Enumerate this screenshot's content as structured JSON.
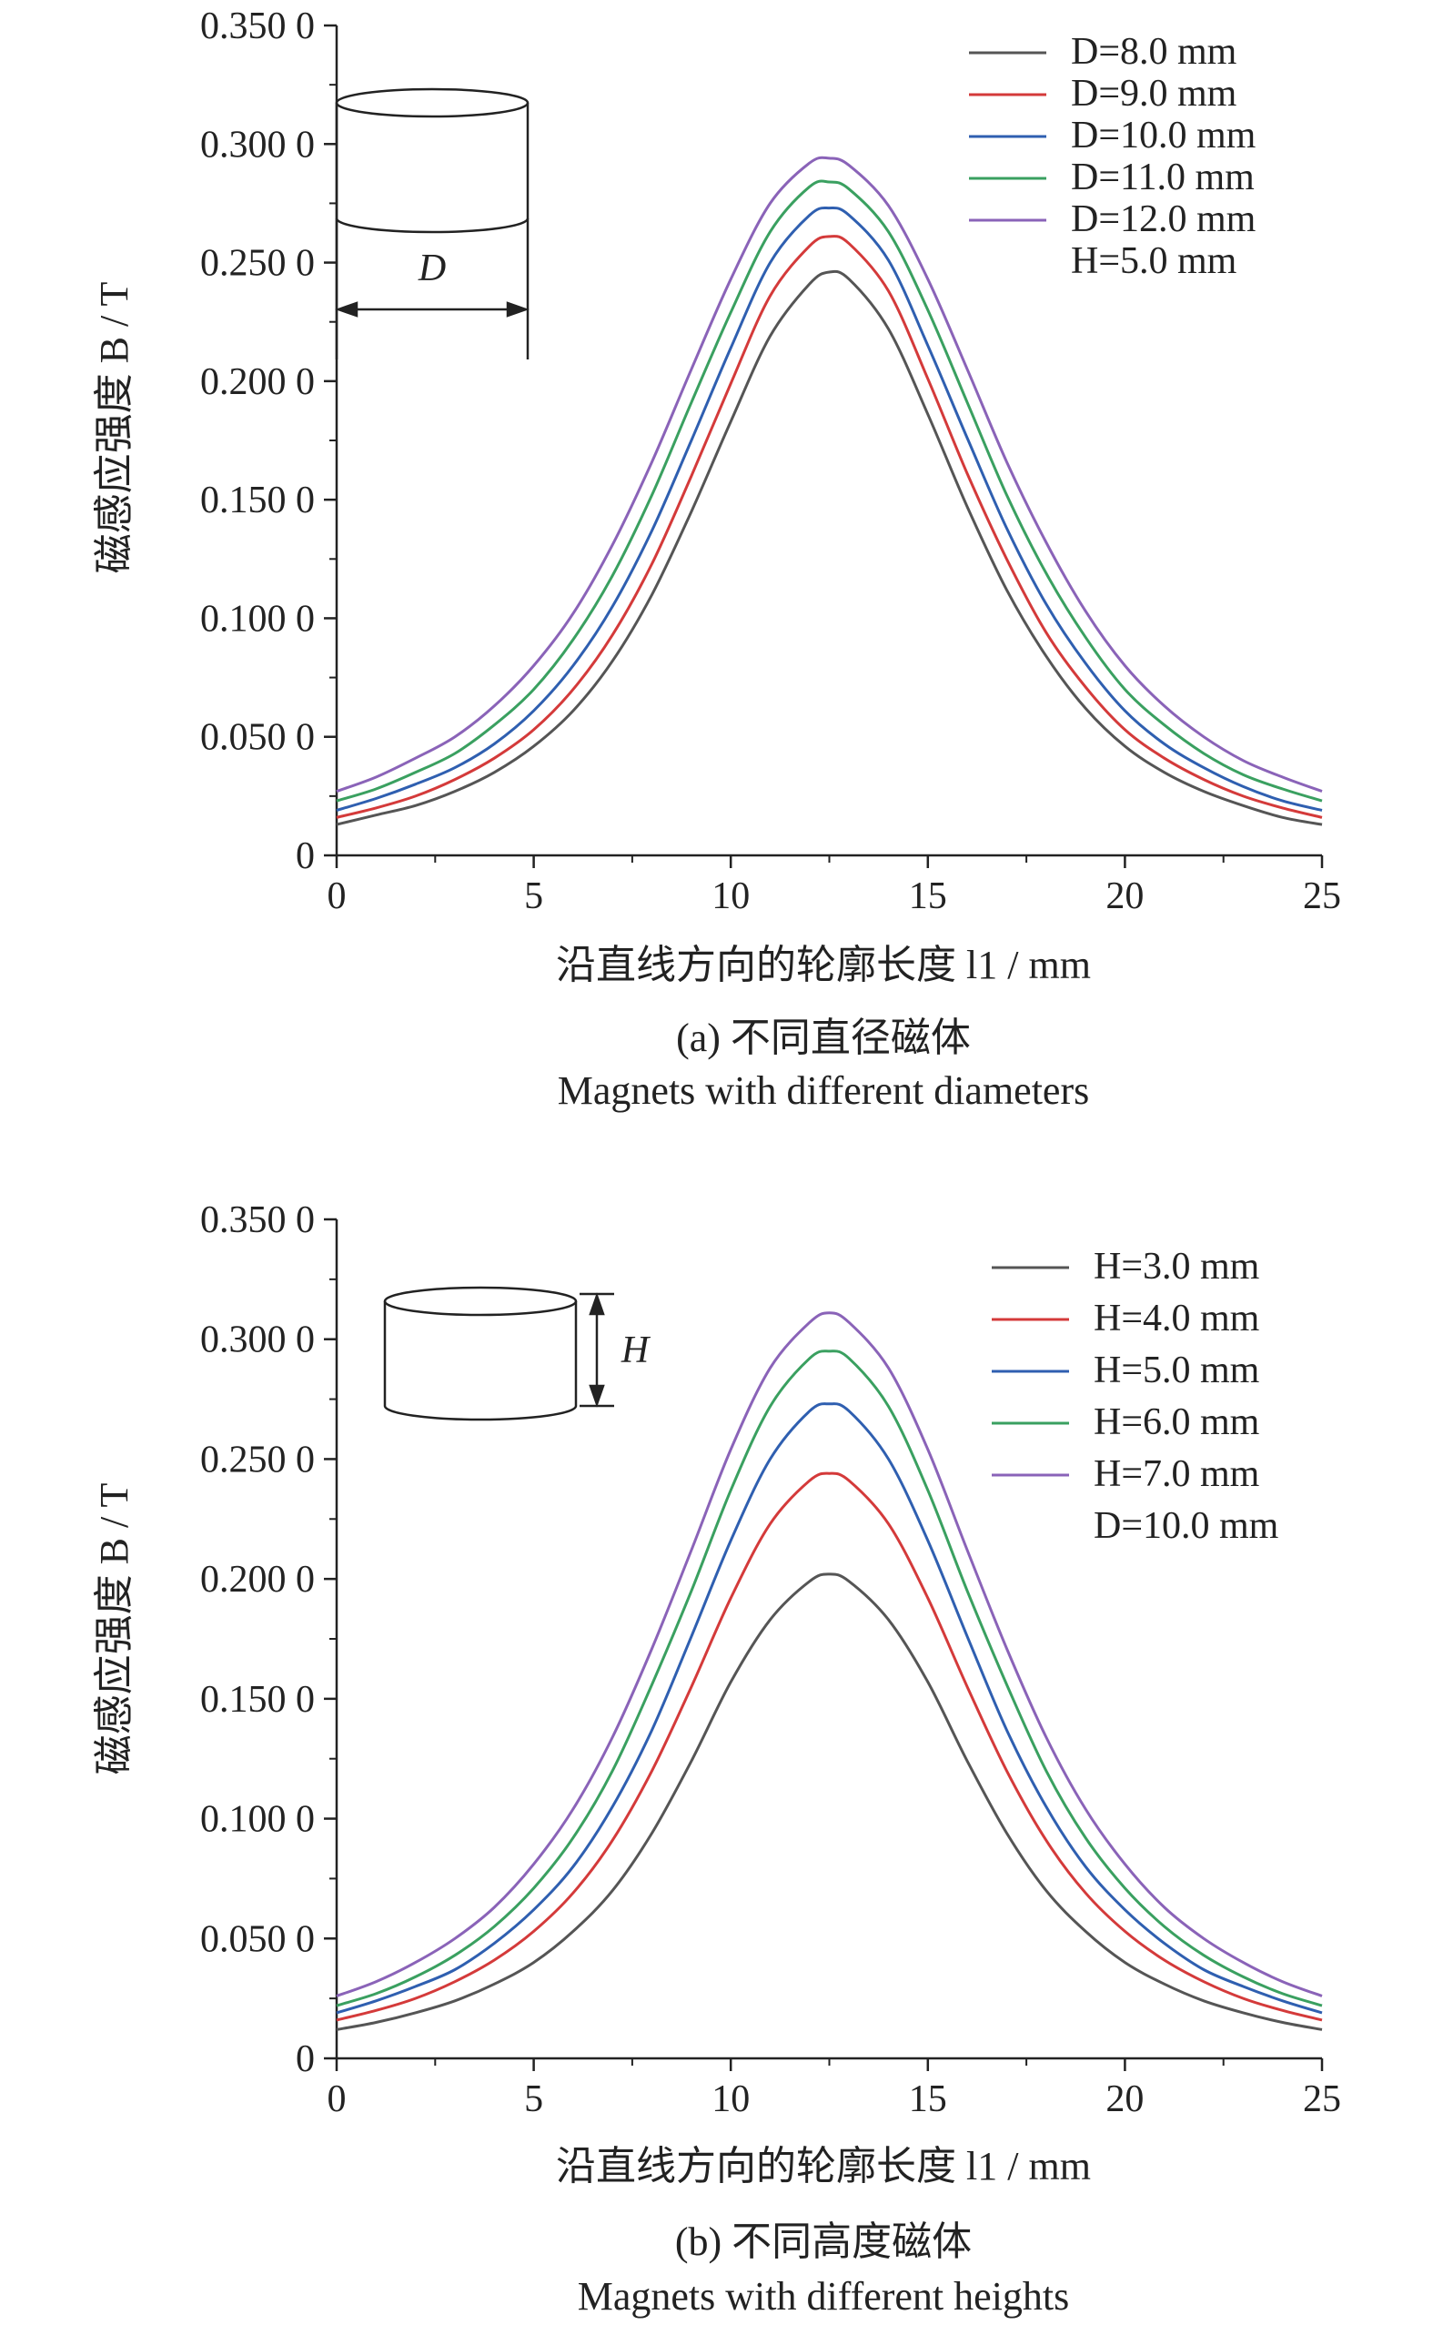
{
  "chart_data": [
    {
      "type": "line",
      "ylabel": "磁感应强度 B / T",
      "xlabel": "沿直线方向的轮廓长度 l1 / mm",
      "xlim": [
        0,
        25
      ],
      "ylim": [
        0,
        0.35
      ],
      "xticks": [
        "0",
        "5",
        "10",
        "15",
        "20",
        "25"
      ],
      "yticks": [
        "0",
        "0.050 0",
        "0.100 0",
        "0.150 0",
        "0.200 0",
        "0.250 0",
        "0.300 0",
        "0.350 0"
      ],
      "caption_cn": "(a) 不同直径磁体",
      "caption_en": "Magnets with different diameters",
      "legend_position": "top-right",
      "legend_note": "H=5.0 mm",
      "inset_label": "D",
      "x": [
        0,
        1,
        2,
        3,
        4,
        5,
        6,
        7,
        8,
        9,
        10,
        11,
        12,
        12.5,
        13,
        14,
        15,
        16,
        17,
        18,
        19,
        20,
        21,
        22,
        23,
        24,
        25
      ],
      "series": [
        {
          "name": "D=8.0 mm",
          "color": "#555555",
          "values": [
            0.013,
            0.017,
            0.021,
            0.027,
            0.035,
            0.046,
            0.061,
            0.082,
            0.11,
            0.145,
            0.183,
            0.219,
            0.241,
            0.246,
            0.243,
            0.222,
            0.186,
            0.147,
            0.112,
            0.084,
            0.062,
            0.046,
            0.035,
            0.027,
            0.021,
            0.016,
            0.013
          ]
        },
        {
          "name": "D=9.0 mm",
          "color": "#d43a3a",
          "values": [
            0.016,
            0.02,
            0.025,
            0.032,
            0.041,
            0.053,
            0.07,
            0.093,
            0.123,
            0.16,
            0.199,
            0.236,
            0.257,
            0.261,
            0.258,
            0.238,
            0.201,
            0.161,
            0.125,
            0.094,
            0.071,
            0.053,
            0.041,
            0.032,
            0.025,
            0.02,
            0.016
          ]
        },
        {
          "name": "D=10.0 mm",
          "color": "#2f5fb0",
          "values": [
            0.019,
            0.024,
            0.03,
            0.037,
            0.047,
            0.061,
            0.08,
            0.105,
            0.137,
            0.175,
            0.214,
            0.25,
            0.27,
            0.273,
            0.27,
            0.251,
            0.215,
            0.176,
            0.138,
            0.106,
            0.081,
            0.061,
            0.047,
            0.037,
            0.029,
            0.023,
            0.019
          ]
        },
        {
          "name": "D=11.0 mm",
          "color": "#3aa060",
          "values": [
            0.023,
            0.028,
            0.035,
            0.043,
            0.055,
            0.07,
            0.091,
            0.118,
            0.152,
            0.191,
            0.229,
            0.263,
            0.282,
            0.284,
            0.281,
            0.263,
            0.23,
            0.191,
            0.152,
            0.119,
            0.092,
            0.07,
            0.055,
            0.043,
            0.034,
            0.028,
            0.023
          ]
        },
        {
          "name": "D=12.0 mm",
          "color": "#8a63b8",
          "values": [
            0.027,
            0.033,
            0.041,
            0.05,
            0.063,
            0.08,
            0.102,
            0.131,
            0.166,
            0.205,
            0.243,
            0.275,
            0.292,
            0.294,
            0.291,
            0.274,
            0.243,
            0.205,
            0.166,
            0.132,
            0.103,
            0.08,
            0.063,
            0.05,
            0.04,
            0.033,
            0.027
          ]
        }
      ]
    },
    {
      "type": "line",
      "ylabel": "磁感应强度 B / T",
      "xlabel": "沿直线方向的轮廓长度 l1 / mm",
      "xlim": [
        0,
        25
      ],
      "ylim": [
        0,
        0.35
      ],
      "xticks": [
        "0",
        "5",
        "10",
        "15",
        "20",
        "25"
      ],
      "yticks": [
        "0",
        "0.050 0",
        "0.100 0",
        "0.150 0",
        "0.200 0",
        "0.250 0",
        "0.300 0",
        "0.350 0"
      ],
      "caption_cn": "(b) 不同高度磁体",
      "caption_en": "Magnets with different heights",
      "legend_position": "top-right",
      "legend_note": "D=10.0 mm",
      "inset_label": "H",
      "x": [
        0,
        1,
        2,
        3,
        4,
        5,
        6,
        7,
        8,
        9,
        10,
        11,
        12,
        12.5,
        13,
        14,
        15,
        16,
        17,
        18,
        19,
        20,
        21,
        22,
        23,
        24,
        25
      ],
      "series": [
        {
          "name": "H=3.0 mm",
          "color": "#555555",
          "values": [
            0.012,
            0.015,
            0.019,
            0.024,
            0.031,
            0.04,
            0.053,
            0.07,
            0.094,
            0.124,
            0.157,
            0.183,
            0.199,
            0.202,
            0.199,
            0.183,
            0.157,
            0.124,
            0.094,
            0.07,
            0.053,
            0.04,
            0.031,
            0.024,
            0.019,
            0.015,
            0.012
          ]
        },
        {
          "name": "H=4.0 mm",
          "color": "#d43a3a",
          "values": [
            0.016,
            0.02,
            0.025,
            0.032,
            0.041,
            0.053,
            0.069,
            0.091,
            0.12,
            0.155,
            0.192,
            0.223,
            0.241,
            0.244,
            0.241,
            0.223,
            0.192,
            0.155,
            0.12,
            0.091,
            0.069,
            0.053,
            0.041,
            0.032,
            0.025,
            0.02,
            0.016
          ]
        },
        {
          "name": "H=5.0 mm",
          "color": "#2f5fb0",
          "values": [
            0.019,
            0.024,
            0.03,
            0.037,
            0.048,
            0.062,
            0.08,
            0.105,
            0.137,
            0.176,
            0.216,
            0.25,
            0.27,
            0.273,
            0.27,
            0.25,
            0.216,
            0.176,
            0.137,
            0.105,
            0.08,
            0.062,
            0.048,
            0.037,
            0.03,
            0.024,
            0.019
          ]
        },
        {
          "name": "H=6.0 mm",
          "color": "#3aa060",
          "values": [
            0.022,
            0.027,
            0.034,
            0.043,
            0.055,
            0.071,
            0.092,
            0.12,
            0.156,
            0.195,
            0.237,
            0.272,
            0.292,
            0.295,
            0.292,
            0.272,
            0.237,
            0.195,
            0.156,
            0.12,
            0.092,
            0.071,
            0.055,
            0.043,
            0.034,
            0.027,
            0.022
          ]
        },
        {
          "name": "H=7.0 mm",
          "color": "#8a63b8",
          "values": [
            0.026,
            0.032,
            0.04,
            0.05,
            0.063,
            0.081,
            0.104,
            0.134,
            0.171,
            0.212,
            0.254,
            0.288,
            0.307,
            0.311,
            0.307,
            0.288,
            0.254,
            0.212,
            0.171,
            0.134,
            0.104,
            0.081,
            0.063,
            0.05,
            0.04,
            0.032,
            0.026
          ]
        }
      ]
    }
  ]
}
